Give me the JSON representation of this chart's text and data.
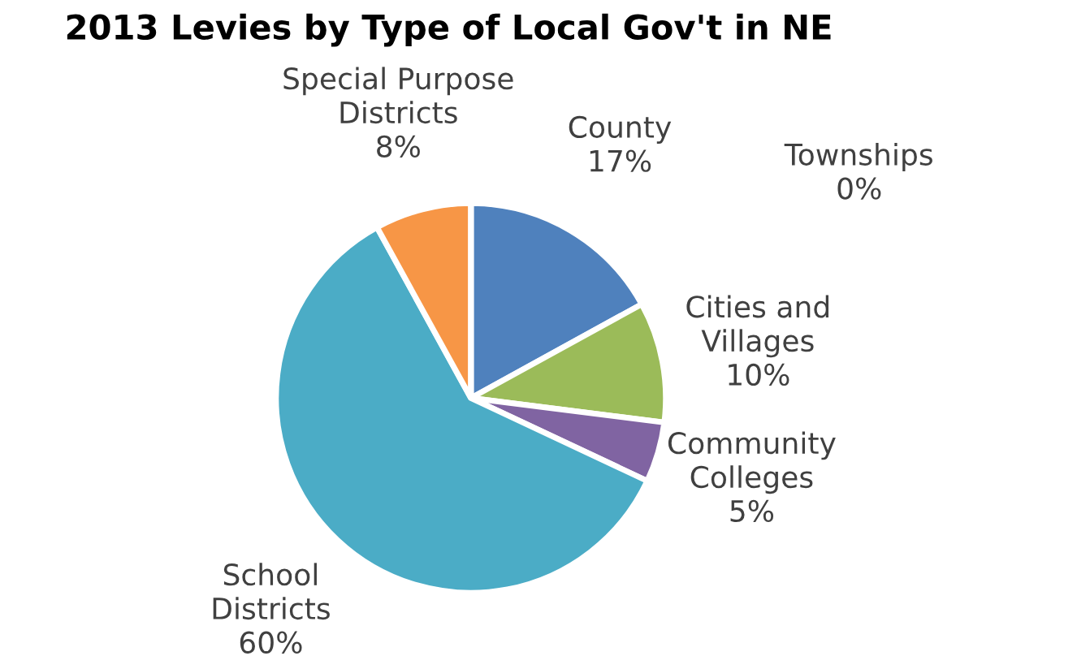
{
  "chart_data": {
    "type": "pie",
    "title": "2013 Levies by Type of Local Gov't in NE",
    "categories": [
      "County",
      "Cities and\nVillages",
      "Community\nColleges",
      "School\nDistricts",
      "Special Purpose\nDistricts",
      "Townships"
    ],
    "values": [
      17,
      10,
      5,
      60,
      8,
      0
    ],
    "colors": [
      "#4f81bd",
      "#9bbb59",
      "#8064a2",
      "#4bacc6",
      "#f79646",
      "#2c4d75"
    ],
    "value_labels": [
      "17%",
      "10%",
      "5%",
      "60%",
      "8%",
      "0%"
    ],
    "legend": false
  }
}
